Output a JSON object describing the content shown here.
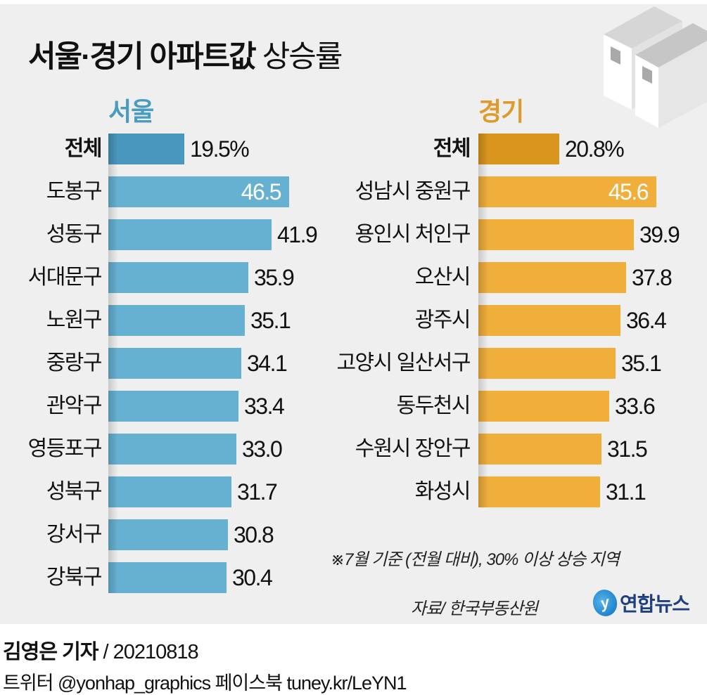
{
  "title": {
    "bold_part": "서울·경기 아파트값",
    "light_part": "상승률"
  },
  "decoration": {
    "icon": "apartment-buildings-icon"
  },
  "colors": {
    "seoul_bar": "#66b1d2",
    "seoul_total_bar": "#4a97bd",
    "seoul_title": "#4a9bc0",
    "gyeonggi_bar": "#f0ae3b",
    "gyeonggi_total_bar": "#d9951e",
    "gyeonggi_title": "#e09a2a",
    "background": "#efefef"
  },
  "note": "※7월 기준 (전월 대비), 30% 이상 상승 지역",
  "source": "자료/ 한국부동산원",
  "logo": {
    "mark": "y",
    "text": "연합뉴스"
  },
  "byline": {
    "reporter": "김영은 기자",
    "date": " / 20210818"
  },
  "social": "트위터 @yonhap_graphics  페이스북 tuney.kr/LeYN1",
  "chart_data": [
    {
      "type": "bar",
      "orientation": "horizontal",
      "title": "서울",
      "unit": "%",
      "xlabel": "",
      "ylabel": "",
      "xlim": [
        0,
        50
      ],
      "grid": false,
      "categories": [
        "전체",
        "도봉구",
        "성동구",
        "서대문구",
        "노원구",
        "중랑구",
        "관악구",
        "영등포구",
        "성북구",
        "강서구",
        "강북구"
      ],
      "values": [
        19.5,
        46.5,
        41.9,
        35.9,
        35.1,
        34.1,
        33.4,
        33.0,
        31.7,
        30.8,
        30.4
      ],
      "value_labels": [
        "19.5%",
        "46.5",
        "41.9",
        "35.9",
        "35.1",
        "34.1",
        "33.4",
        "33.0",
        "31.7",
        "30.8",
        "30.4"
      ]
    },
    {
      "type": "bar",
      "orientation": "horizontal",
      "title": "경기",
      "unit": "%",
      "xlabel": "",
      "ylabel": "",
      "xlim": [
        0,
        50
      ],
      "grid": false,
      "categories": [
        "전체",
        "성남시 중원구",
        "용인시 처인구",
        "오산시",
        "광주시",
        "고양시 일산서구",
        "동두천시",
        "수원시 장안구",
        "화성시"
      ],
      "values": [
        20.8,
        45.6,
        39.9,
        37.8,
        36.4,
        35.1,
        33.6,
        31.5,
        31.1
      ],
      "value_labels": [
        "20.8%",
        "45.6",
        "39.9",
        "37.8",
        "36.4",
        "35.1",
        "33.6",
        "31.5",
        "31.1"
      ]
    }
  ]
}
